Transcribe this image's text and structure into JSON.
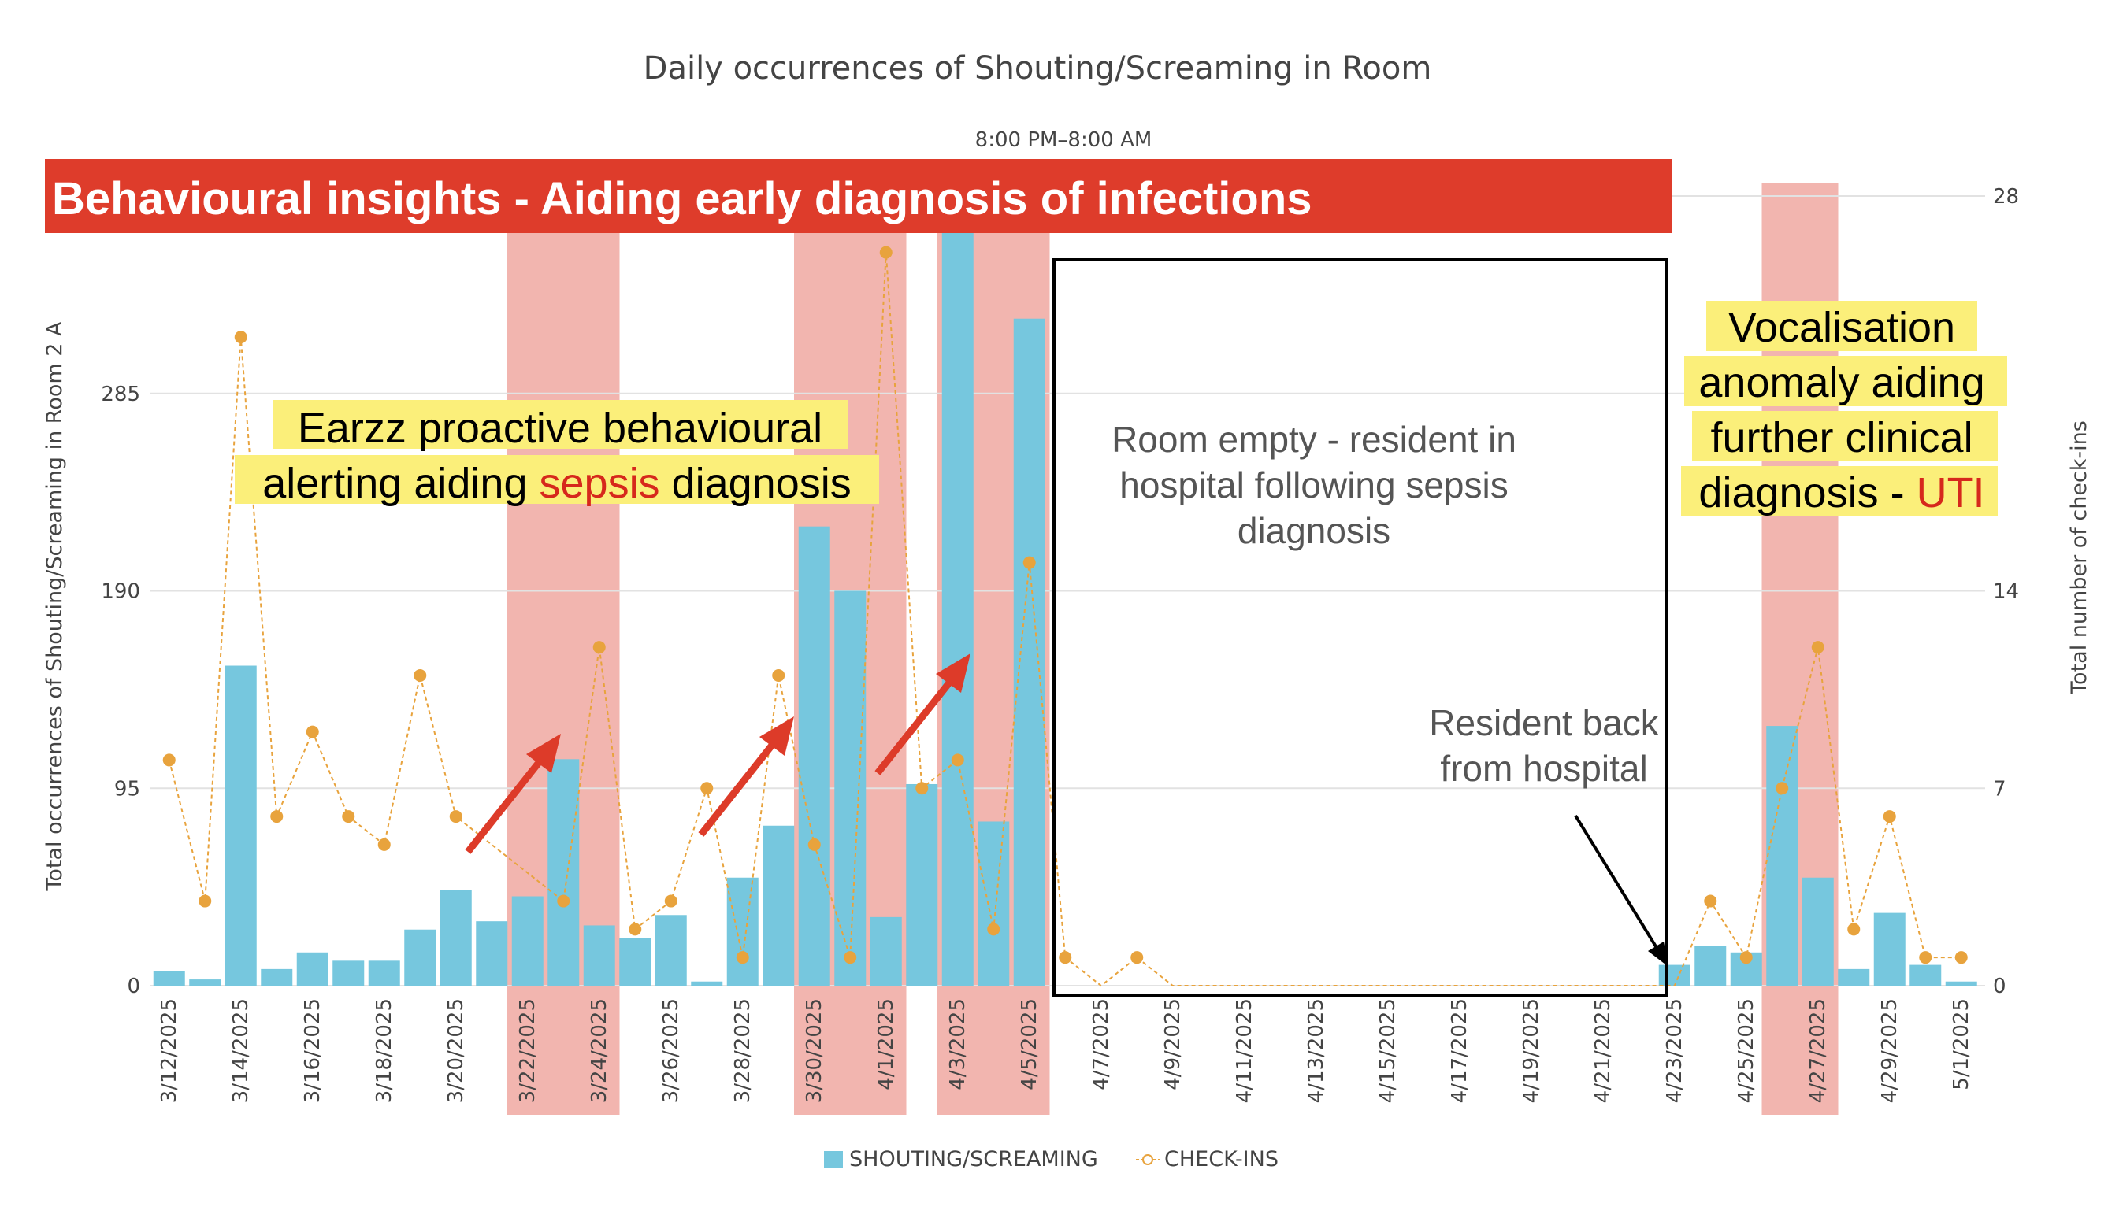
{
  "chart_data": {
    "type": "bar",
    "title": "Daily occurrences of Shouting/Screaming in Room",
    "subtitle": "8:00 PM–8:00 AM",
    "ylabel": "Total occurrences of Shouting/Screaming in Room 2 A",
    "y2label": "Total number of check-ins",
    "ylim": [
      0,
      380
    ],
    "y2lim": [
      0,
      28
    ],
    "yticks": [
      "0",
      "95",
      "190",
      "285"
    ],
    "y2ticks": [
      "0",
      "7",
      "14",
      "28"
    ],
    "y2tick_values": [
      0,
      7,
      14,
      28
    ],
    "ytick_values": [
      0,
      95,
      190,
      285
    ],
    "x_dates": [
      "3/12/2025",
      "3/13/2025",
      "3/14/2025",
      "3/15/2025",
      "3/16/2025",
      "3/17/2025",
      "3/18/2025",
      "3/19/2025",
      "3/20/2025",
      "3/21/2025",
      "3/22/2025",
      "3/23/2025",
      "3/24/2025",
      "3/25/2025",
      "3/26/2025",
      "3/27/2025",
      "3/28/2025",
      "3/29/2025",
      "3/30/2025",
      "3/31/2025",
      "4/1/2025",
      "4/2/2025",
      "4/3/2025",
      "4/4/2025",
      "4/5/2025",
      "4/6/2025",
      "4/7/2025",
      "4/8/2025",
      "4/9/2025",
      "4/10/2025",
      "4/11/2025",
      "4/12/2025",
      "4/13/2025",
      "4/14/2025",
      "4/15/2025",
      "4/16/2025",
      "4/17/2025",
      "4/18/2025",
      "4/19/2025",
      "4/20/2025",
      "4/21/2025",
      "4/22/2025",
      "4/23/2025",
      "4/24/2025",
      "4/25/2025",
      "4/26/2025",
      "4/27/2025",
      "4/28/2025",
      "4/29/2025",
      "4/30/2025",
      "5/1/2025"
    ],
    "x_tick_labels": [
      "3/12/2025",
      "3/14/2025",
      "3/16/2025",
      "3/18/2025",
      "3/20/2025",
      "3/22/2025",
      "3/24/2025",
      "3/26/2025",
      "3/28/2025",
      "3/30/2025",
      "4/1/2025",
      "4/3/2025",
      "4/5/2025",
      "4/7/2025",
      "4/9/2025",
      "4/11/2025",
      "4/13/2025",
      "4/15/2025",
      "4/17/2025",
      "4/19/2025",
      "4/21/2025",
      "4/23/2025",
      "4/25/2025",
      "4/27/2025",
      "4/29/2025",
      "5/1/2025"
    ],
    "series": [
      {
        "name": "SHOUTING/SCREAMING",
        "type": "bar",
        "axis": "left",
        "color": "#76c7de",
        "values": [
          7,
          3,
          154,
          8,
          16,
          12,
          12,
          27,
          46,
          31,
          43,
          109,
          29,
          23,
          34,
          2,
          52,
          77,
          221,
          190,
          33,
          97,
          380,
          79,
          321,
          0,
          0,
          0,
          0,
          0,
          0,
          0,
          0,
          0,
          0,
          0,
          0,
          0,
          0,
          0,
          0,
          0,
          10,
          19,
          16,
          125,
          52,
          8,
          35,
          10,
          2
        ]
      },
      {
        "name": "CHECK-INS",
        "type": "line",
        "axis": "right",
        "color": "#e8a33d",
        "values": [
          8,
          3,
          23,
          6,
          9,
          6,
          5,
          11,
          6,
          null,
          null,
          3,
          12,
          2,
          3,
          7,
          1,
          11,
          5,
          1,
          26,
          7,
          8,
          2,
          15,
          1,
          0,
          1,
          0,
          0,
          0,
          0,
          0,
          0,
          0,
          0,
          0,
          0,
          0,
          0,
          0,
          0,
          0,
          3,
          1,
          7,
          12,
          2,
          6,
          1,
          1
        ]
      }
    ],
    "legend_position": "bottom-center",
    "grid": true,
    "highlight_bands": [
      {
        "from": "3/22/2025",
        "to": "3/24/2025"
      },
      {
        "from": "3/30/2025",
        "to": "4/1/2025"
      },
      {
        "from": "4/3/2025",
        "to": "4/5/2025"
      },
      {
        "from": "4/26/2025",
        "to": "4/27/2025"
      }
    ],
    "colors": {
      "band": "#ee9c94",
      "banner": "#de3c2b",
      "highlight_yellow": "#fbef7a",
      "accent_red": "#d6281c",
      "grid": "#e2e2e2"
    }
  },
  "annotations": {
    "banner": "Behavioural insights - Aiding early diagnosis of infections",
    "sepsis_line1": "Earzz proactive behavioural",
    "sepsis_line2_a": "alerting aiding ",
    "sepsis_line2_b": "sepsis",
    "sepsis_line2_c": " diagnosis",
    "uti_line1": "Vocalisation",
    "uti_line2": "anomaly aiding",
    "uti_line3": "further clinical",
    "uti_line4_a": "diagnosis - ",
    "uti_line4_b": "UTI",
    "empty_line1": "Room empty - resident in",
    "empty_line2": "hospital following sepsis",
    "empty_line3": "diagnosis",
    "back_line1": "Resident back",
    "back_line2": "from hospital"
  }
}
